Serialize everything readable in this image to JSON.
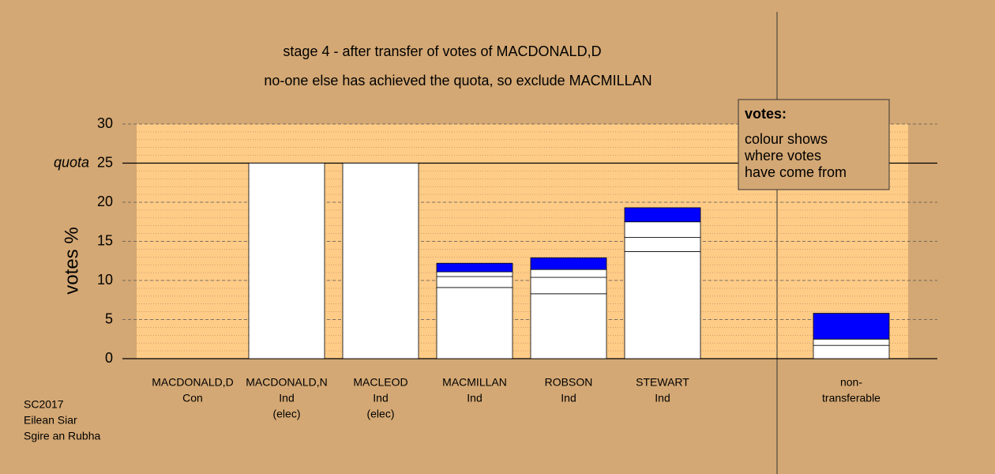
{
  "chart_data": {
    "type": "stacked_bar",
    "title": "stage 4 - after transfer of votes of MACDONALD,D",
    "subtitle": "no-one else has achieved the quota, so exclude MACMILLAN",
    "y_label": "votes %",
    "categories": [
      [
        "MACDONALD,D",
        "Con"
      ],
      [
        "MACDONALD,N",
        "Ind",
        "(elec)"
      ],
      [
        "MACLEOD",
        "Ind",
        "(elec)"
      ],
      [
        "MACMILLAN",
        "Ind"
      ],
      [
        "ROBSON",
        "Ind"
      ],
      [
        "STEWART",
        "Ind"
      ],
      [
        "non-",
        "transferable"
      ]
    ],
    "series": [
      {
        "color": "#ffffff",
        "values": [
          0,
          25,
          25,
          9.1,
          8.3,
          13.7,
          1.7
        ]
      },
      {
        "color": "#ffffff",
        "values": [
          0,
          0,
          0,
          1.4,
          2.1,
          1.8,
          0.8
        ]
      },
      {
        "color": "#ffffff",
        "values": [
          0,
          0,
          0,
          0.6,
          1.0,
          2.0,
          0
        ]
      },
      {
        "color": "#0000ff",
        "values": [
          0,
          0,
          0,
          1.1,
          1.5,
          1.8,
          3.3
        ]
      }
    ],
    "ylim": [
      0,
      30
    ],
    "yticks": [
      0,
      5,
      10,
      15,
      20,
      25,
      30
    ],
    "minor_grid_step": 1,
    "grid": true,
    "quota": 25,
    "quota_label": "quota",
    "legend_lines": [
      "votes:",
      "colour shows",
      "where votes",
      "have come from"
    ],
    "footnote": [
      "SC2017",
      "Eilean Siar",
      "Sgire an Rubha"
    ]
  }
}
